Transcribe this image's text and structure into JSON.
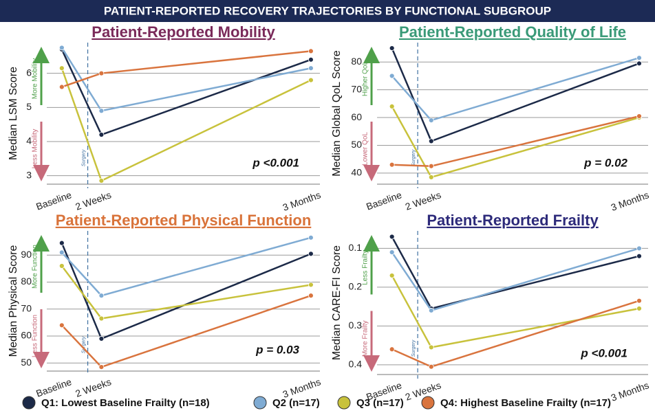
{
  "title": "PATIENT-REPORTED RECOVERY TRAJECTORIES BY FUNCTIONAL SUBGROUP",
  "chart_data": [
    {
      "type": "line",
      "title": "Patient-Reported Mobility",
      "title_color": "#7a2a5a",
      "y_label": "Median LSM Score",
      "arrow_up_label": "More Mobility",
      "arrow_down_label": "Less Mobility",
      "marker_label": "Surgery",
      "annotation": "p <0.001",
      "categories": [
        "Baseline",
        "2 Weeks",
        "3 Months"
      ],
      "ylim": [
        2.75,
        6.9
      ],
      "yticks": [
        3,
        4,
        5,
        6
      ],
      "grid": true,
      "y_inverted": false,
      "series": [
        {
          "name": "Q1: Lowest Baseline Frailty (n=18)",
          "color": "#1c2a48",
          "values": [
            6.7,
            4.2,
            6.4
          ]
        },
        {
          "name": "Q2 (n=17)",
          "color": "#7fabd3",
          "values": [
            6.75,
            4.9,
            6.15
          ]
        },
        {
          "name": "Q3 (n=17)",
          "color": "#c8c23c",
          "values": [
            6.15,
            2.85,
            5.8
          ]
        },
        {
          "name": "Q4: Highest Baseline Frailty (n=17)",
          "color": "#d9743e",
          "values": [
            5.6,
            6.0,
            6.65
          ]
        }
      ]
    },
    {
      "type": "line",
      "title": "Patient-Reported Quality of Life",
      "title_color": "#3a9a78",
      "y_label": "Median Global QoL Score",
      "arrow_up_label": "Higher QoL",
      "arrow_down_label": "Lower QoL",
      "marker_label": "Surgery",
      "annotation": "p = 0.02",
      "categories": [
        "Baseline",
        "2 Weeks",
        "3 Months"
      ],
      "ylim": [
        36,
        87
      ],
      "yticks": [
        40,
        50,
        60,
        70,
        80
      ],
      "grid": true,
      "y_inverted": false,
      "series": [
        {
          "name": "Q1: Lowest Baseline Frailty (n=18)",
          "color": "#1c2a48",
          "values": [
            85,
            51.5,
            79.5
          ]
        },
        {
          "name": "Q2 (n=17)",
          "color": "#7fabd3",
          "values": [
            75,
            59,
            81.5
          ]
        },
        {
          "name": "Q3 (n=17)",
          "color": "#c8c23c",
          "values": [
            64,
            38.5,
            60
          ]
        },
        {
          "name": "Q4: Highest Baseline Frailty (n=17)",
          "color": "#d9743e",
          "values": [
            43,
            42.5,
            60.5
          ]
        }
      ]
    },
    {
      "type": "line",
      "title": "Patient-Reported Physical Function",
      "title_color": "#d9733a",
      "y_label": "Median Physical Score",
      "arrow_up_label": "More Function",
      "arrow_down_label": "Less Function",
      "marker_label": "Surgery",
      "annotation": "p = 0.03",
      "categories": [
        "Baseline",
        "2 Weeks",
        "3 Months"
      ],
      "ylim": [
        47,
        99
      ],
      "yticks": [
        50,
        60,
        70,
        80,
        90
      ],
      "grid": true,
      "y_inverted": false,
      "series": [
        {
          "name": "Q1: Lowest Baseline Frailty (n=18)",
          "color": "#1c2a48",
          "values": [
            94.5,
            59,
            90.5
          ]
        },
        {
          "name": "Q2 (n=17)",
          "color": "#7fabd3",
          "values": [
            91,
            75,
            96.5
          ]
        },
        {
          "name": "Q3 (n=17)",
          "color": "#c8c23c",
          "values": [
            86,
            66.5,
            79
          ]
        },
        {
          "name": "Q4: Highest Baseline Frailty (n=17)",
          "color": "#d9743e",
          "values": [
            64,
            48.5,
            75
          ]
        }
      ]
    },
    {
      "type": "line",
      "title": "Patient-Reported Frailty",
      "title_color": "#2d2a7a",
      "y_label": "Median CARE-FI Score",
      "arrow_up_label": "Less Frailty",
      "arrow_down_label": "More Frailty",
      "marker_label": "Surgery",
      "annotation": "p <0.001",
      "categories": [
        "Baseline",
        "2 Weeks",
        "3 Months"
      ],
      "ylim": [
        0.055,
        0.425
      ],
      "yticks": [
        0.1,
        0.2,
        0.3,
        0.4
      ],
      "grid": true,
      "y_inverted": true,
      "series": [
        {
          "name": "Q1: Lowest Baseline Frailty (n=18)",
          "color": "#1c2a48",
          "values": [
            0.07,
            0.255,
            0.12
          ]
        },
        {
          "name": "Q2 (n=17)",
          "color": "#7fabd3",
          "values": [
            0.11,
            0.26,
            0.1
          ]
        },
        {
          "name": "Q3 (n=17)",
          "color": "#c8c23c",
          "values": [
            0.17,
            0.355,
            0.255
          ]
        },
        {
          "name": "Q4: Highest Baseline Frailty (n=17)",
          "color": "#d9743e",
          "values": [
            0.36,
            0.405,
            0.235
          ]
        }
      ]
    }
  ]
}
